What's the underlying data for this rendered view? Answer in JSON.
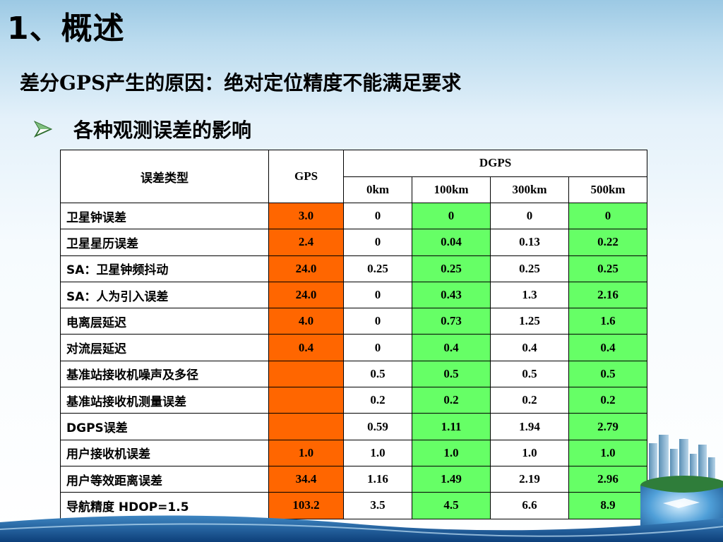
{
  "title": "1、概述",
  "subtitle": "差分GPS产生的原因：绝对定位精度不能满足要求",
  "bullet": {
    "text": "各种观测误差的影响",
    "icon": "arrow-bullet-icon"
  },
  "colors": {
    "gps_cell": "#ff6600",
    "dgps_highlight": "#66ff66"
  },
  "table": {
    "header_type": "误差类型",
    "header_gps": "GPS",
    "header_dgps": "DGPS",
    "dgps_cols": [
      "0km",
      "100km",
      "300km",
      "500km"
    ],
    "rows": [
      {
        "name": "卫星钟误差",
        "gps": "3.0",
        "v": [
          "0",
          "0",
          "0",
          "0"
        ]
      },
      {
        "name": "卫星星历误差",
        "gps": "2.4",
        "v": [
          "0",
          "0.04",
          "0.13",
          "0.22"
        ]
      },
      {
        "name": "SA：卫星钟频抖动",
        "gps": "24.0",
        "v": [
          "0.25",
          "0.25",
          "0.25",
          "0.25"
        ]
      },
      {
        "name": "SA：人为引入误差",
        "gps": "24.0",
        "v": [
          "0",
          "0.43",
          "1.3",
          "2.16"
        ]
      },
      {
        "name": "电离层延迟",
        "gps": "4.0",
        "v": [
          "0",
          "0.73",
          "1.25",
          "1.6"
        ]
      },
      {
        "name": "对流层延迟",
        "gps": "0.4",
        "v": [
          "0",
          "0.4",
          "0.4",
          "0.4"
        ]
      },
      {
        "name": "基准站接收机噪声及多径",
        "gps": "",
        "v": [
          "0.5",
          "0.5",
          "0.5",
          "0.5"
        ]
      },
      {
        "name": "基准站接收机测量误差",
        "gps": "",
        "v": [
          "0.2",
          "0.2",
          "0.2",
          "0.2"
        ]
      },
      {
        "name": "DGPS误差",
        "gps": "",
        "v": [
          "0.59",
          "1.11",
          "1.94",
          "2.79"
        ]
      },
      {
        "name": "用户接收机误差",
        "gps": "1.0",
        "v": [
          "1.0",
          "1.0",
          "1.0",
          "1.0"
        ]
      },
      {
        "name": "用户等效距离误差",
        "gps": "34.4",
        "v": [
          "1.16",
          "1.49",
          "2.19",
          "2.96"
        ]
      },
      {
        "name": "导航精度 HDOP=1.5",
        "gps": "103.2",
        "v": [
          "3.5",
          "4.5",
          "6.6",
          "8.9"
        ]
      }
    ]
  }
}
